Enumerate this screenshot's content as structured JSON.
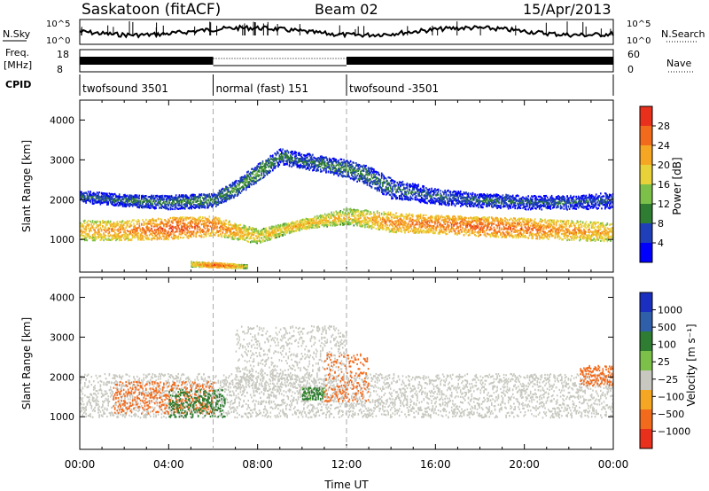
{
  "header": {
    "station": "Saskatoon (fitACF)",
    "beam": "Beam 02",
    "date": "15/Apr/2013"
  },
  "status_panels": {
    "nsky": {
      "label": "N.Sky",
      "ticks_left": [
        "10^5",
        "10^0"
      ],
      "right_label": "N.Search",
      "ticks_right": [
        "10^5",
        "10^0"
      ]
    },
    "freq": {
      "label_line1": "Freq.",
      "label_line2": "[MHz]",
      "ticks_left": [
        "18",
        "8"
      ],
      "right_label": "Nave",
      "ticks_right": [
        "60",
        "0"
      ]
    },
    "cpid": {
      "label": "CPID",
      "segments": [
        {
          "name": "twofsound 3501",
          "start": 0,
          "end": 6
        },
        {
          "name": "normal (fast) 151",
          "start": 6,
          "end": 12
        },
        {
          "name": "twofsound -3501",
          "start": 12,
          "end": 24
        }
      ]
    }
  },
  "chart_data": [
    {
      "type": "heatmap",
      "panel": "power",
      "ylabel": "Slant Range [km]",
      "xlabel": "",
      "xlim": [
        0,
        24
      ],
      "ylim": [
        180,
        4500
      ],
      "yticks": [
        1000,
        2000,
        3000,
        4000
      ],
      "colorbar": {
        "label": "Power [dB]",
        "range": [
          0,
          32
        ],
        "tick_labels": [
          "28",
          "24",
          "20",
          "16",
          "12",
          "8",
          "4"
        ],
        "tick_values": [
          28,
          24,
          20,
          16,
          12,
          8,
          4
        ],
        "colors": [
          "#0000ff",
          "#1f3fb8",
          "#2e7d32",
          "#7cc04a",
          "#e8d23a",
          "#f5a623",
          "#f26b1d",
          "#e8301c"
        ]
      },
      "bands": [
        {
          "t": [
            0,
            2,
            4,
            6,
            8,
            10,
            12,
            14,
            16,
            18,
            20,
            22,
            24
          ],
          "range_km": [
            1250,
            1250,
            1300,
            1350,
            1100,
            1400,
            1600,
            1450,
            1400,
            1350,
            1300,
            1250,
            1200
          ],
          "width_km": [
            500,
            500,
            550,
            500,
            350,
            250,
            400,
            500,
            450,
            500,
            500,
            500,
            450
          ],
          "power_db": [
            22,
            24,
            28,
            26,
            20,
            22,
            20,
            24,
            26,
            27,
            26,
            24,
            22
          ]
        },
        {
          "t": [
            0,
            2,
            4,
            6,
            7,
            8,
            9,
            10,
            11,
            12,
            13,
            14,
            16,
            18,
            20,
            22,
            24
          ],
          "range_km": [
            2100,
            2000,
            1950,
            2000,
            2300,
            2700,
            3100,
            3000,
            2900,
            2800,
            2600,
            2300,
            2100,
            2000,
            1950,
            1950,
            2000
          ],
          "width_km": [
            300,
            300,
            350,
            350,
            400,
            450,
            400,
            400,
            400,
            450,
            500,
            500,
            400,
            350,
            350,
            350,
            400
          ],
          "power_db": [
            8,
            9,
            10,
            11,
            12,
            12,
            10,
            9,
            10,
            11,
            10,
            9,
            8,
            9,
            8,
            8,
            7
          ]
        },
        {
          "t": [
            5,
            6,
            7,
            7.5
          ],
          "range_km": [
            400,
            380,
            350,
            340
          ],
          "width_km": [
            120,
            120,
            100,
            80
          ],
          "power_db": [
            20,
            28,
            24,
            18
          ]
        }
      ]
    },
    {
      "type": "heatmap",
      "panel": "velocity",
      "ylabel": "Slant Range [km]",
      "xlabel": "Time UT",
      "xlim": [
        0,
        24
      ],
      "ylim": [
        180,
        4500
      ],
      "yticks": [
        1000,
        2000,
        3000,
        4000
      ],
      "xtick_labels": [
        "00:00",
        "04:00",
        "08:00",
        "12:00",
        "16:00",
        "20:00",
        "00:00"
      ],
      "colorbar": {
        "label": "Velocity [m s⁻¹]",
        "tick_labels": [
          "1000",
          "500",
          "100",
          "25",
          "−25",
          "−100",
          "−500",
          "−1000"
        ],
        "colors": [
          "#1a2fc0",
          "#2e5fa8",
          "#2e7d32",
          "#7cc04a",
          "#c8c8c0",
          "#f5a623",
          "#f26b1d",
          "#e8301c"
        ]
      },
      "regions": [
        {
          "t0": 0,
          "t1": 24,
          "r0": 1000,
          "r1": 2100,
          "velocity": "ground",
          "value_ms": 0
        },
        {
          "t0": 1.5,
          "t1": 6,
          "r0": 1100,
          "r1": 1900,
          "velocity": "toward",
          "value_ms": -300
        },
        {
          "t0": 4,
          "t1": 6.5,
          "r0": 1000,
          "r1": 1700,
          "velocity": "away",
          "value_ms": 200
        },
        {
          "t0": 7,
          "t1": 12,
          "r0": 1700,
          "r1": 3300,
          "velocity": "ground",
          "value_ms": 0
        },
        {
          "t0": 10,
          "t1": 11,
          "r0": 1450,
          "r1": 1750,
          "velocity": "away",
          "value_ms": 150
        },
        {
          "t0": 11,
          "t1": 13,
          "r0": 1400,
          "r1": 2600,
          "velocity": "toward",
          "value_ms": -200
        },
        {
          "t0": 22.5,
          "t1": 24,
          "r0": 1800,
          "r1": 2300,
          "velocity": "toward",
          "value_ms": -400
        }
      ]
    }
  ]
}
